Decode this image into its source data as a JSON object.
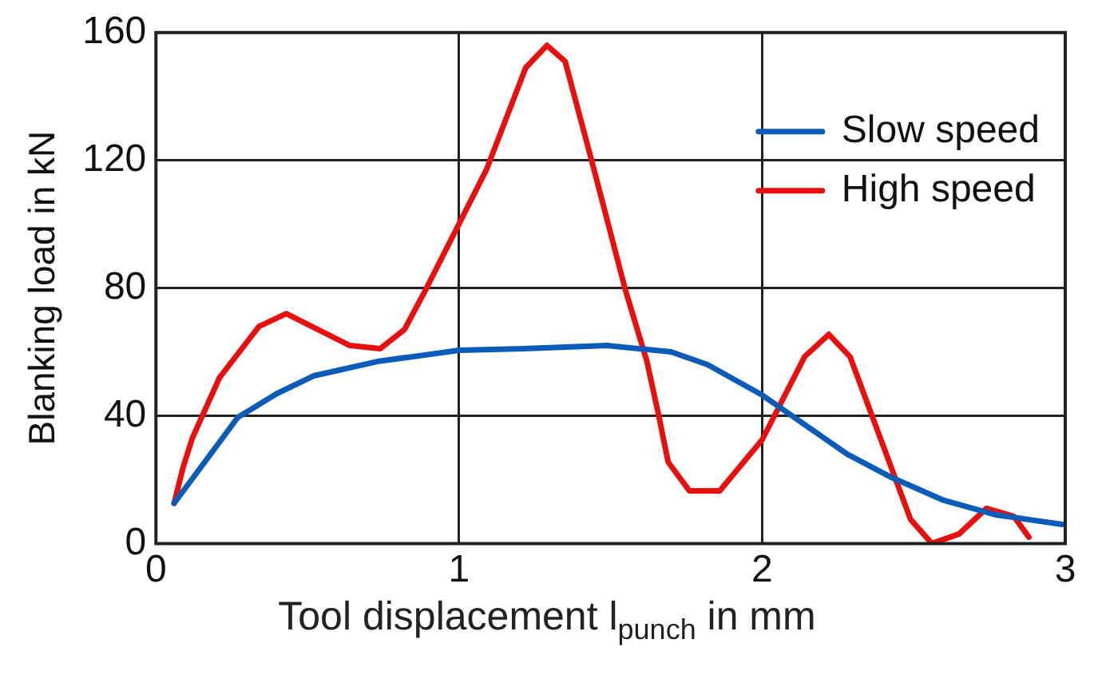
{
  "chart_data": {
    "type": "line",
    "xlabel": "Tool displacement l$_{punch}$ in mm",
    "ylabel": "Blanking load in kN",
    "xlim": [
      0,
      3
    ],
    "xticks": [
      0,
      1,
      2,
      3
    ],
    "ylim": [
      0,
      160
    ],
    "yticks": [
      0,
      40,
      80,
      120,
      160
    ],
    "grid": true,
    "legend": "top right",
    "marker": "none",
    "line_style": "solid",
    "series": [
      {
        "name": "Slow speed",
        "color": "#0a5cb8",
        "x": [
          0.06,
          0.27,
          0.4,
          0.52,
          0.73,
          1.0,
          1.21,
          1.49,
          1.7,
          1.82,
          2.0,
          2.28,
          2.42,
          2.6,
          2.77,
          2.99
        ],
        "values": [
          12.6,
          39.5,
          47,
          52.5,
          57,
          60.5,
          61,
          62,
          60,
          56,
          46.5,
          28,
          21,
          13.5,
          9,
          6
        ]
      },
      {
        "name": "High speed",
        "color": "#e8100f",
        "x": [
          0.06,
          0.09,
          0.12,
          0.21,
          0.34,
          0.43,
          0.64,
          0.74,
          0.82,
          0.89,
          1.09,
          1.22,
          1.29,
          1.35,
          1.44,
          1.55,
          1.62,
          1.66,
          1.69,
          1.76,
          1.86,
          2.0,
          2.14,
          2.22,
          2.29,
          2.49,
          2.56,
          2.65,
          2.74,
          2.83,
          2.88
        ],
        "values": [
          12.6,
          24,
          33,
          52,
          68,
          72,
          62,
          61,
          67,
          79.5,
          117,
          149,
          156,
          151,
          119,
          79,
          57,
          39.5,
          25.5,
          16.5,
          16.5,
          32.5,
          58.5,
          65.5,
          58.5,
          7.5,
          0,
          3,
          11,
          8.5,
          2
        ]
      }
    ]
  }
}
